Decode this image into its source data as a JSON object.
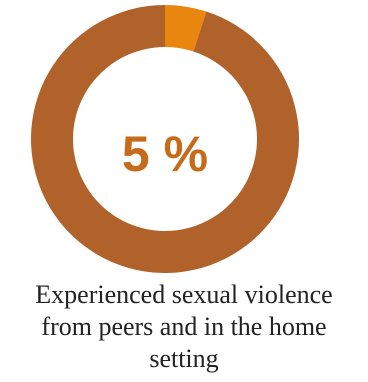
{
  "chart_data": {
    "type": "pie",
    "variant": "donut",
    "slices": [
      {
        "label": "Experienced sexual violence from peers and in the home setting",
        "value": 5
      },
      {
        "label": "",
        "value": 95
      }
    ],
    "center_text": "5 %",
    "caption_lines": [
      "Experienced sexual violence",
      "from peers and in the home",
      "setting"
    ],
    "colors": {
      "highlight": "#E8860F",
      "remainder": "#B0622A",
      "center_text": "#C76A1A"
    }
  }
}
